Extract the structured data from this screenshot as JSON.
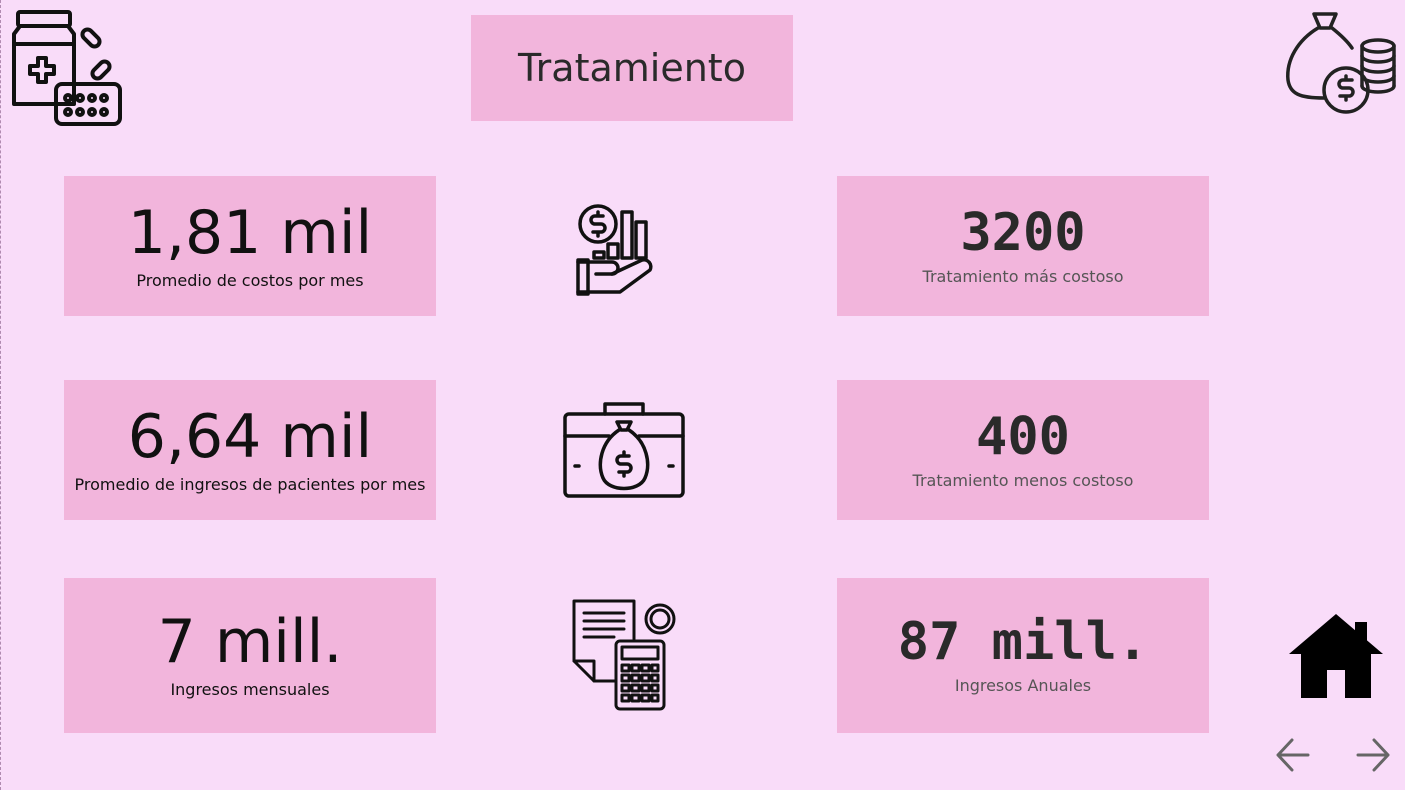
{
  "header": {
    "title": "Tratamiento"
  },
  "cards": {
    "avg_costs": {
      "value": "1,81 mil",
      "label": "Promedio de costos por mes"
    },
    "avg_income": {
      "value": "6,64 mil",
      "label": "Promedio de ingresos de pacientes por mes"
    },
    "monthly_income": {
      "value": "7 mill.",
      "label": "Ingresos mensuales"
    },
    "max_treatment": {
      "value": "3200",
      "label": "Tratamiento más costoso"
    },
    "min_treatment": {
      "value": "400",
      "label": "Tratamiento menos costoso"
    },
    "annual_income": {
      "value": "87 mill.",
      "label": "Ingresos Anuales"
    }
  },
  "icons": [
    "medicine-icon",
    "money-bag-coins-icon",
    "hand-money-chart-icon",
    "briefcase-money-icon",
    "invoice-calculator-icon",
    "home-icon",
    "arrow-left-icon",
    "arrow-right-icon"
  ],
  "colors": {
    "background": "#f9dcf9",
    "card": "#f2b5dc"
  }
}
